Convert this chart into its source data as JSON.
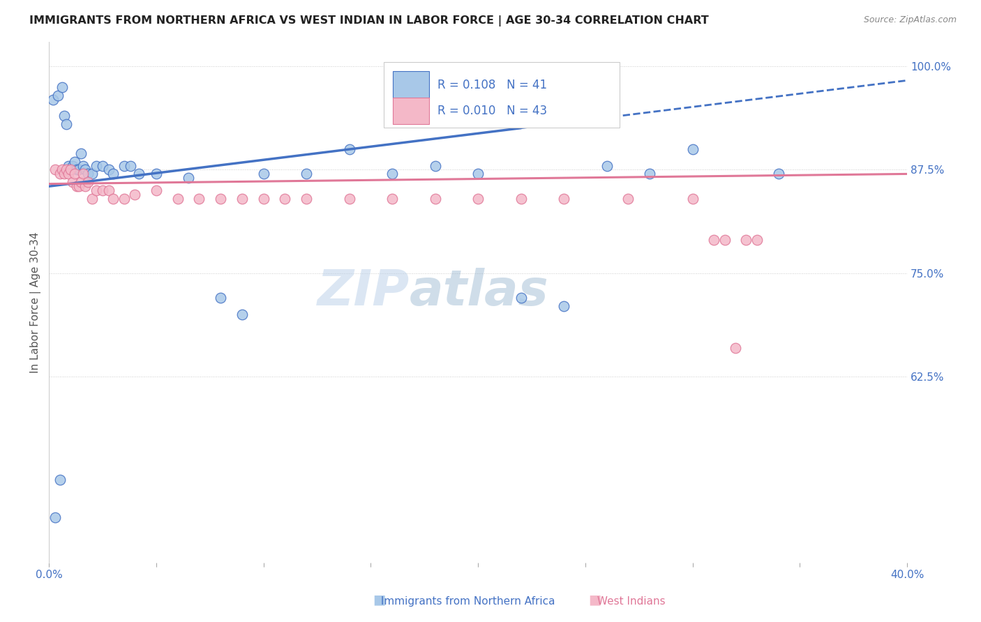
{
  "title": "IMMIGRANTS FROM NORTHERN AFRICA VS WEST INDIAN IN LABOR FORCE | AGE 30-34 CORRELATION CHART",
  "source": "Source: ZipAtlas.com",
  "ylabel": "In Labor Force | Age 30-34",
  "xlim": [
    0.0,
    0.4
  ],
  "ylim": [
    0.4,
    1.03
  ],
  "xtick_positions": [
    0.0,
    0.05,
    0.1,
    0.15,
    0.2,
    0.25,
    0.3,
    0.35,
    0.4
  ],
  "xticklabels": [
    "0.0%",
    "",
    "",
    "",
    "",
    "",
    "",
    "",
    "40.0%"
  ],
  "yticks_right": [
    0.625,
    0.75,
    0.875,
    1.0
  ],
  "ytick_labels_right": [
    "62.5%",
    "75.0%",
    "87.5%",
    "100.0%"
  ],
  "blue_fill": "#a8c8e8",
  "blue_edge": "#4472c4",
  "pink_fill": "#f4b8c8",
  "pink_edge": "#e07898",
  "blue_line_color": "#4472c4",
  "pink_line_color": "#e07898",
  "R_blue": 0.108,
  "N_blue": 41,
  "R_pink": 0.01,
  "N_pink": 43,
  "blue_line_solid_end": 0.22,
  "blue_line_full_end": 0.4,
  "blue_scatter_x": [
    0.002,
    0.004,
    0.006,
    0.007,
    0.008,
    0.009,
    0.01,
    0.011,
    0.012,
    0.013,
    0.014,
    0.015,
    0.016,
    0.017,
    0.018,
    0.02,
    0.022,
    0.025,
    0.028,
    0.03,
    0.035,
    0.038,
    0.042,
    0.05,
    0.065,
    0.08,
    0.09,
    0.1,
    0.12,
    0.14,
    0.16,
    0.18,
    0.2,
    0.22,
    0.24,
    0.26,
    0.28,
    0.3,
    0.34,
    0.005,
    0.003
  ],
  "blue_scatter_y": [
    0.96,
    0.965,
    0.975,
    0.94,
    0.93,
    0.88,
    0.875,
    0.88,
    0.885,
    0.875,
    0.875,
    0.895,
    0.88,
    0.875,
    0.87,
    0.87,
    0.88,
    0.88,
    0.875,
    0.87,
    0.88,
    0.88,
    0.87,
    0.87,
    0.865,
    0.72,
    0.7,
    0.87,
    0.87,
    0.9,
    0.87,
    0.88,
    0.87,
    0.72,
    0.71,
    0.88,
    0.87,
    0.9,
    0.87,
    0.5,
    0.455
  ],
  "pink_scatter_x": [
    0.003,
    0.005,
    0.006,
    0.007,
    0.008,
    0.009,
    0.01,
    0.011,
    0.012,
    0.013,
    0.014,
    0.015,
    0.016,
    0.017,
    0.018,
    0.02,
    0.022,
    0.025,
    0.028,
    0.03,
    0.035,
    0.04,
    0.05,
    0.06,
    0.07,
    0.08,
    0.09,
    0.1,
    0.11,
    0.12,
    0.14,
    0.16,
    0.18,
    0.2,
    0.22,
    0.24,
    0.27,
    0.3,
    0.31,
    0.315,
    0.32,
    0.325,
    0.33
  ],
  "pink_scatter_y": [
    0.875,
    0.87,
    0.875,
    0.87,
    0.875,
    0.87,
    0.875,
    0.86,
    0.87,
    0.855,
    0.855,
    0.86,
    0.87,
    0.855,
    0.86,
    0.84,
    0.85,
    0.85,
    0.85,
    0.84,
    0.84,
    0.845,
    0.85,
    0.84,
    0.84,
    0.84,
    0.84,
    0.84,
    0.84,
    0.84,
    0.84,
    0.84,
    0.84,
    0.84,
    0.84,
    0.84,
    0.84,
    0.84,
    0.79,
    0.79,
    0.66,
    0.79,
    0.79
  ],
  "watermark_zip": "ZIP",
  "watermark_atlas": "atlas",
  "legend_text_color": "#4472c4",
  "title_color": "#222222",
  "axis_label_color": "#555555",
  "grid_color": "#cccccc",
  "background_color": "#ffffff"
}
